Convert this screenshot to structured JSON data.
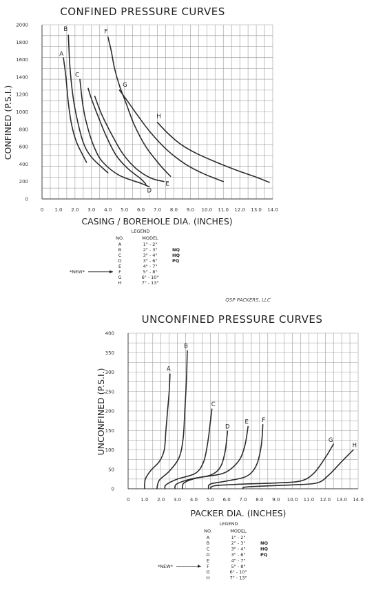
{
  "chart_data": [
    {
      "type": "line",
      "title": "CONFINED PRESSURE CURVES",
      "xlabel": "CASING / BOREHOLE DIA. (INCHES)",
      "ylabel": "CONFINED (P.S.I.)",
      "xlim": [
        0,
        14
      ],
      "ylim": [
        0,
        2000
      ],
      "xticks": [
        "0",
        "1.0",
        "2.0",
        "3.0",
        "4.0",
        "5.0",
        "6.0",
        "7.0",
        "8.0",
        "9.0",
        "10.0",
        "11.0",
        "12.0",
        "13.0",
        "14.0"
      ],
      "yticks": [
        "0",
        "200",
        "400",
        "600",
        "800",
        "1000",
        "1200",
        "1400",
        "1600",
        "1800",
        "2000"
      ],
      "grid": true,
      "series": [
        {
          "name": "A",
          "points": [
            [
              1.3,
              1620
            ],
            [
              1.45,
              1400
            ],
            [
              1.6,
              1100
            ],
            [
              1.8,
              850
            ],
            [
              2.1,
              650
            ],
            [
              2.7,
              420
            ]
          ]
        },
        {
          "name": "B",
          "points": [
            [
              1.6,
              1880
            ],
            [
              1.7,
              1500
            ],
            [
              1.9,
              1150
            ],
            [
              2.15,
              900
            ],
            [
              2.5,
              650
            ],
            [
              3.0,
              480
            ],
            [
              4.0,
              300
            ]
          ]
        },
        {
          "name": "C",
          "points": [
            [
              2.3,
              1370
            ],
            [
              2.5,
              1050
            ],
            [
              2.8,
              800
            ],
            [
              3.2,
              580
            ],
            [
              3.7,
              420
            ],
            [
              4.7,
              270
            ],
            [
              6.0,
              180
            ],
            [
              6.5,
              140
            ]
          ]
        },
        {
          "name": "D",
          "points": [
            [
              2.8,
              1270
            ],
            [
              3.0,
              1150
            ],
            [
              3.4,
              950
            ],
            [
              3.9,
              720
            ],
            [
              4.5,
              500
            ],
            [
              5.2,
              350
            ],
            [
              6.0,
              230
            ],
            [
              6.3,
              170
            ]
          ]
        },
        {
          "name": "E",
          "points": [
            [
              3.2,
              1180
            ],
            [
              3.6,
              980
            ],
            [
              4.2,
              750
            ],
            [
              4.9,
              520
            ],
            [
              5.7,
              350
            ],
            [
              6.6,
              240
            ],
            [
              7.4,
              200
            ]
          ]
        },
        {
          "name": "F",
          "points": [
            [
              4.0,
              1860
            ],
            [
              4.2,
              1700
            ],
            [
              4.4,
              1500
            ],
            [
              4.7,
              1300
            ],
            [
              5.1,
              1100
            ],
            [
              5.6,
              850
            ],
            [
              6.3,
              600
            ],
            [
              7.2,
              380
            ],
            [
              7.8,
              260
            ]
          ]
        },
        {
          "name": "G",
          "points": [
            [
              4.7,
              1250
            ],
            [
              5.2,
              1120
            ],
            [
              5.8,
              960
            ],
            [
              6.6,
              760
            ],
            [
              7.6,
              560
            ],
            [
              8.7,
              400
            ],
            [
              9.8,
              290
            ],
            [
              11.0,
              200
            ]
          ]
        },
        {
          "name": "H",
          "points": [
            [
              7.0,
              880
            ],
            [
              7.6,
              760
            ],
            [
              8.4,
              630
            ],
            [
              9.4,
              520
            ],
            [
              10.6,
              420
            ],
            [
              11.8,
              330
            ],
            [
              13.0,
              250
            ],
            [
              13.8,
              190
            ]
          ]
        }
      ],
      "legend": {
        "title": "LEGEND",
        "header_no": "NO.",
        "header_model": "MODEL",
        "rows": [
          {
            "no": "A",
            "model": "1\" - 2\"",
            "tag": ""
          },
          {
            "no": "B",
            "model": "2\" - 3\"",
            "tag": "NQ"
          },
          {
            "no": "C",
            "model": "3\" - 4\"",
            "tag": "HQ"
          },
          {
            "no": "D",
            "model": "3\" - 6\"",
            "tag": "PQ"
          },
          {
            "no": "E",
            "model": "4\" - 7\"",
            "tag": ""
          },
          {
            "no": "F",
            "model": "5\" - 8\"",
            "tag": ""
          },
          {
            "no": "G",
            "model": "6\" - 10\"",
            "tag": ""
          },
          {
            "no": "H",
            "model": "7\" - 13\"",
            "tag": ""
          }
        ],
        "new_marker": "*NEW*"
      },
      "credit": "QSP PACKERS, LLC"
    },
    {
      "type": "line",
      "title": "UNCONFINED PRESSURE CURVES",
      "xlabel": "PACKER DIA. (INCHES)",
      "ylabel": "UNCONFINED (P.S.I.)",
      "xlim": [
        0,
        14
      ],
      "ylim": [
        0,
        400
      ],
      "xticks": [
        "0",
        "1.0",
        "2.0",
        "3.0",
        "4.0",
        "5.0",
        "6.0",
        "7.0",
        "8.0",
        "9.0",
        "10.0",
        "11.0",
        "12.0",
        "13.0",
        "14.0"
      ],
      "yticks": [
        "0",
        "50",
        "100",
        "150",
        "200",
        "250",
        "300",
        "350",
        "400"
      ],
      "grid": true,
      "series": [
        {
          "name": "A",
          "points": [
            [
              1.0,
              0
            ],
            [
              1.05,
              25
            ],
            [
              1.4,
              48
            ],
            [
              1.9,
              70
            ],
            [
              2.2,
              100
            ],
            [
              2.3,
              150
            ],
            [
              2.4,
              200
            ],
            [
              2.5,
              250
            ],
            [
              2.55,
              295
            ]
          ]
        },
        {
          "name": "B",
          "points": [
            [
              1.75,
              0
            ],
            [
              1.9,
              22
            ],
            [
              2.5,
              45
            ],
            [
              3.1,
              80
            ],
            [
              3.35,
              130
            ],
            [
              3.45,
              200
            ],
            [
              3.55,
              280
            ],
            [
              3.6,
              355
            ]
          ]
        },
        {
          "name": "C",
          "points": [
            [
              2.25,
              0
            ],
            [
              2.3,
              10
            ],
            [
              3.0,
              25
            ],
            [
              4.1,
              40
            ],
            [
              4.6,
              70
            ],
            [
              4.85,
              120
            ],
            [
              5.0,
              170
            ],
            [
              5.1,
              205
            ]
          ]
        },
        {
          "name": "D",
          "points": [
            [
              2.85,
              0
            ],
            [
              2.95,
              12
            ],
            [
              3.8,
              25
            ],
            [
              5.0,
              35
            ],
            [
              5.6,
              55
            ],
            [
              5.9,
              95
            ],
            [
              6.05,
              148
            ]
          ]
        },
        {
          "name": "E",
          "points": [
            [
              3.3,
              0
            ],
            [
              3.4,
              15
            ],
            [
              4.2,
              28
            ],
            [
              5.8,
              40
            ],
            [
              6.7,
              70
            ],
            [
              7.1,
              110
            ],
            [
              7.3,
              160
            ]
          ]
        },
        {
          "name": "F",
          "points": [
            [
              4.9,
              0
            ],
            [
              5.0,
              12
            ],
            [
              6.0,
              20
            ],
            [
              7.2,
              32
            ],
            [
              7.8,
              60
            ],
            [
              8.1,
              110
            ],
            [
              8.2,
              165
            ]
          ]
        },
        {
          "name": "G",
          "points": [
            [
              5.0,
              0
            ],
            [
              5.3,
              8
            ],
            [
              7.0,
              12
            ],
            [
              9.0,
              15
            ],
            [
              10.5,
              20
            ],
            [
              11.3,
              40
            ],
            [
              12.0,
              80
            ],
            [
              12.5,
              115
            ]
          ]
        },
        {
          "name": "H",
          "points": [
            [
              7.0,
              0
            ],
            [
              7.3,
              5
            ],
            [
              10.0,
              10
            ],
            [
              11.5,
              15
            ],
            [
              12.2,
              35
            ],
            [
              13.0,
              70
            ],
            [
              13.7,
              100
            ]
          ]
        }
      ],
      "legend": {
        "title": "LEGEND",
        "header_no": "NO.",
        "header_model": "MODEL",
        "rows": [
          {
            "no": "A",
            "model": "1\" - 2\"",
            "tag": ""
          },
          {
            "no": "B",
            "model": "2\" - 3\"",
            "tag": "NQ"
          },
          {
            "no": "C",
            "model": "3\" - 4\"",
            "tag": "HQ"
          },
          {
            "no": "D",
            "model": "3\" - 6\"",
            "tag": "PQ"
          },
          {
            "no": "E",
            "model": "4\" - 7\"",
            "tag": ""
          },
          {
            "no": "F",
            "model": "5\" - 8\"",
            "tag": ""
          },
          {
            "no": "G",
            "model": "6\" - 10\"",
            "tag": ""
          },
          {
            "no": "H",
            "model": "7\" - 13\"",
            "tag": ""
          }
        ],
        "new_marker": "*NEW*"
      }
    }
  ]
}
